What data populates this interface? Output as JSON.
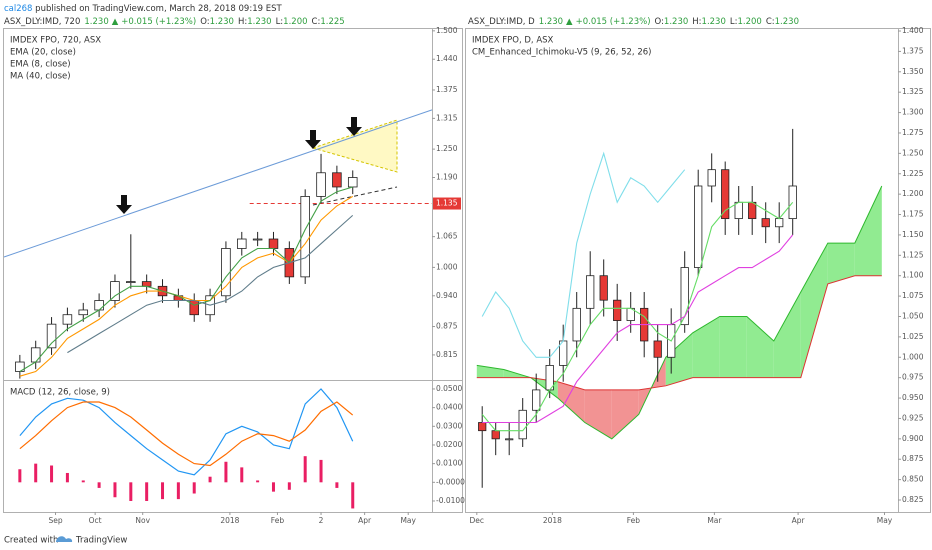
{
  "header": {
    "author": "cal268",
    "published": "published on TradingView.com, March 28, 2018 09:19 EST",
    "left": {
      "symbol": "ASX_DLY:IMD, 720",
      "price": "1.230",
      "arrow": "▲",
      "change": "+0.015 (+1.23%)",
      "stats": [
        [
          "O:",
          "1.230"
        ],
        [
          "H:",
          "1.230"
        ],
        [
          "L:",
          "1.200"
        ],
        [
          "C:",
          "1.225"
        ]
      ]
    },
    "right": {
      "symbol": "ASX_DLY:IMD, D",
      "price": "1.230",
      "arrow": "▲",
      "change": "+0.015 (+1.23%)",
      "stats": [
        [
          "O:",
          "1.230"
        ],
        [
          "H:",
          "1.230"
        ],
        [
          "L:",
          "1.200"
        ],
        [
          "C:",
          "1.230"
        ]
      ]
    }
  },
  "footer": {
    "created": "Created with",
    "brand": "TradingView"
  },
  "chart_data": [
    {
      "type": "candlestick",
      "title": "IMDEX FPO, 720, ASX",
      "up_color": "#ffffff",
      "down_color": "#e53935",
      "xlim": [
        0,
        108
      ],
      "ylim": [
        0.762,
        1.506
      ],
      "yticks": [
        {
          "value": 1.5,
          "label": "1.500"
        },
        {
          "value": 1.44,
          "label": "1.440"
        },
        1.375,
        1.315,
        {
          "value": 1.25,
          "label": "1.250"
        },
        {
          "value": 1.19,
          "label": "1.190"
        },
        1.065,
        {
          "value": 1.0,
          "label": "1.000"
        },
        {
          "value": 0.94,
          "label": "0.940"
        },
        0.875,
        0.815
      ],
      "x": [
        4,
        8,
        12,
        16,
        20,
        24,
        28,
        32,
        36,
        40,
        44,
        48,
        52,
        56,
        60,
        64,
        68,
        72,
        76,
        80,
        84,
        88
      ],
      "open": [
        0.78,
        0.8,
        0.83,
        0.88,
        0.9,
        0.91,
        0.93,
        0.97,
        0.97,
        0.96,
        0.94,
        0.93,
        0.9,
        0.94,
        1.04,
        1.06,
        1.06,
        1.04,
        0.98,
        1.15,
        1.2,
        1.17
      ],
      "high": [
        0.815,
        0.845,
        0.895,
        0.915,
        0.925,
        0.945,
        0.985,
        1.07,
        0.985,
        0.975,
        0.955,
        0.945,
        0.955,
        1.055,
        1.075,
        1.075,
        1.075,
        1.055,
        1.165,
        1.24,
        1.215,
        1.205
      ],
      "low": [
        0.765,
        0.785,
        0.815,
        0.865,
        0.885,
        0.895,
        0.915,
        0.955,
        0.945,
        0.925,
        0.915,
        0.885,
        0.885,
        0.925,
        1.025,
        1.045,
        1.025,
        0.965,
        0.965,
        1.135,
        1.155,
        1.155
      ],
      "close": [
        0.8,
        0.83,
        0.88,
        0.9,
        0.91,
        0.93,
        0.97,
        0.97,
        0.96,
        0.94,
        0.93,
        0.9,
        0.94,
        1.04,
        1.06,
        1.06,
        1.04,
        0.98,
        1.15,
        1.2,
        1.17,
        1.19
      ],
      "series": [
        {
          "name": "EMA (20, close)",
          "color": "#ff9800",
          "values": [
            0.77,
            0.78,
            0.81,
            0.85,
            0.87,
            0.89,
            0.92,
            0.94,
            0.95,
            0.95,
            0.94,
            0.93,
            0.93,
            0.96,
            1.0,
            1.02,
            1.03,
            1.01,
            1.05,
            1.1,
            1.13,
            1.15
          ]
        },
        {
          "name": "EMA (8, close)",
          "color": "#43a047",
          "values": [
            0.78,
            0.8,
            0.84,
            0.87,
            0.89,
            0.91,
            0.94,
            0.96,
            0.96,
            0.95,
            0.94,
            0.92,
            0.93,
            0.98,
            1.02,
            1.04,
            1.04,
            1.01,
            1.08,
            1.14,
            1.16,
            1.17
          ]
        },
        {
          "name": "MA (40, close)",
          "color": "#607d8b",
          "values": [
            null,
            null,
            null,
            0.82,
            0.84,
            0.86,
            0.88,
            0.9,
            0.92,
            0.93,
            0.93,
            0.93,
            0.92,
            0.93,
            0.95,
            0.98,
            1.0,
            1.01,
            1.02,
            1.05,
            1.08,
            1.11
          ]
        }
      ],
      "trendline": {
        "x": [
          0,
          108
        ],
        "y": [
          1.022,
          1.333
        ],
        "color": "#6c9bd8"
      },
      "level": {
        "value": 1.135,
        "x": 62,
        "color": "#e53935"
      }
    },
    {
      "type": "macd",
      "title": "MACD (12, 26, close, 9)",
      "xlim": [
        0,
        108
      ],
      "ylim": [
        -0.0159,
        0.0548
      ],
      "yticks": [
        {
          "value": 0.05,
          "label": "0.0500"
        },
        {
          "value": 0.04,
          "label": "0.0400"
        },
        {
          "value": 0.03,
          "label": "0.0300"
        },
        {
          "value": 0.02,
          "label": "0.0200"
        },
        {
          "value": 0.01,
          "label": "0.0100"
        },
        {
          "value": 0,
          "label": "-0.0000"
        },
        {
          "value": -0.01,
          "label": "-0.0100"
        }
      ],
      "xticks": [
        {
          "value": 13,
          "label": "Sep"
        },
        {
          "value": 23,
          "label": "Oct"
        },
        {
          "value": 35,
          "label": "Nov"
        },
        {
          "value": 57,
          "label": "2018"
        },
        {
          "value": 69,
          "label": "Feb"
        },
        {
          "value": 80,
          "label": "2"
        },
        {
          "value": 91,
          "label": "Apr"
        },
        {
          "value": 102,
          "label": "May"
        }
      ],
      "x": [
        4,
        8,
        12,
        16,
        20,
        24,
        28,
        32,
        36,
        40,
        44,
        48,
        52,
        56,
        60,
        64,
        68,
        72,
        76,
        80,
        84,
        88
      ],
      "histogram": {
        "color": "#e91e63",
        "values": [
          0.007,
          0.01,
          0.009,
          0.005,
          0.001,
          -0.003,
          -0.008,
          -0.01,
          -0.01,
          -0.009,
          -0.009,
          -0.006,
          0.003,
          0.011,
          0.008,
          0.001,
          -0.005,
          -0.004,
          0.014,
          0.012,
          -0.003,
          -0.014
        ]
      },
      "series": [
        {
          "color": "#2196f3",
          "values": [
            0.025,
            0.035,
            0.042,
            0.045,
            0.044,
            0.04,
            0.032,
            0.025,
            0.018,
            0.012,
            0.006,
            0.004,
            0.012,
            0.026,
            0.03,
            0.027,
            0.02,
            0.018,
            0.042,
            0.05,
            0.04,
            0.022
          ]
        },
        {
          "color": "#ff6d00",
          "values": [
            0.018,
            0.025,
            0.033,
            0.04,
            0.043,
            0.043,
            0.04,
            0.035,
            0.028,
            0.021,
            0.015,
            0.01,
            0.009,
            0.015,
            0.022,
            0.026,
            0.025,
            0.022,
            0.028,
            0.038,
            0.043,
            0.036
          ]
        }
      ]
    },
    {
      "type": "candlestick",
      "title": "IMDEX FPO, D, ASX",
      "indicator": "CM_Enhanced_Ichimoku-V5 (9, 26, 52, 26)",
      "up_color": "#ffffff",
      "down_color": "#e53935",
      "xlim": [
        -4,
        156
      ],
      "ylim": [
        0.8103,
        1.4037
      ],
      "yticks": [
        {
          "value": 1.4,
          "label": "1.400"
        },
        1.375,
        {
          "value": 1.35,
          "label": "1.350"
        },
        1.325,
        {
          "value": 1.3,
          "label": "1.300"
        },
        1.275,
        {
          "value": 1.25,
          "label": "1.250"
        },
        1.225,
        {
          "value": 1.2,
          "label": "1.200"
        },
        1.175,
        {
          "value": 1.15,
          "label": "1.150"
        },
        1.125,
        {
          "value": 1.1,
          "label": "1.100"
        },
        1.075,
        {
          "value": 1.05,
          "label": "1.050"
        },
        1.025,
        {
          "value": 1.0,
          "label": "1.000"
        },
        0.975,
        {
          "value": 0.95,
          "label": "0.950"
        },
        0.925,
        {
          "value": 0.9,
          "label": "0.900"
        },
        0.875,
        {
          "value": 0.85,
          "label": "0.850"
        },
        0.825
      ],
      "xticks": [
        {
          "value": 0,
          "label": "Dec"
        },
        {
          "value": 28,
          "label": "2018"
        },
        {
          "value": 58,
          "label": "Feb"
        },
        {
          "value": 88,
          "label": "Mar"
        },
        {
          "value": 119,
          "label": "Apr"
        },
        {
          "value": 151,
          "label": "May"
        }
      ],
      "x": [
        2,
        7,
        12,
        17,
        22,
        27,
        32,
        37,
        42,
        47,
        52,
        57,
        62,
        67,
        72,
        77,
        82,
        87,
        92,
        97,
        102,
        107,
        112,
        117
      ],
      "open": [
        0.92,
        0.91,
        0.9,
        0.9,
        0.935,
        0.96,
        0.99,
        1.02,
        1.06,
        1.1,
        1.07,
        1.045,
        1.06,
        1.02,
        1.0,
        1.04,
        1.11,
        1.21,
        1.23,
        1.17,
        1.19,
        1.17,
        1.16,
        1.17
      ],
      "high": [
        0.94,
        0.92,
        0.92,
        0.95,
        0.98,
        1.01,
        1.04,
        1.08,
        1.13,
        1.12,
        1.09,
        1.08,
        1.08,
        1.04,
        1.06,
        1.13,
        1.23,
        1.25,
        1.24,
        1.21,
        1.21,
        1.19,
        1.19,
        1.28
      ],
      "low": [
        0.84,
        0.88,
        0.88,
        0.89,
        0.92,
        0.95,
        0.97,
        1.0,
        1.04,
        1.05,
        1.02,
        1.03,
        1.0,
        0.97,
        0.98,
        1.03,
        1.1,
        1.19,
        1.15,
        1.15,
        1.15,
        1.14,
        1.14,
        1.15
      ],
      "close": [
        0.91,
        0.9,
        0.9,
        0.935,
        0.96,
        0.99,
        1.02,
        1.06,
        1.1,
        1.07,
        1.045,
        1.06,
        1.02,
        1.0,
        1.04,
        1.11,
        1.21,
        1.23,
        1.17,
        1.19,
        1.17,
        1.16,
        1.17,
        1.21
      ],
      "series": [
        {
          "color": "#80deea",
          "values": [
            1.05,
            1.08,
            1.06,
            1.02,
            1.0,
            1.0,
            1.02,
            1.14,
            1.2,
            1.25,
            1.19,
            1.22,
            1.21,
            1.19,
            1.21,
            1.23,
            null,
            null,
            null,
            null,
            null,
            null,
            null,
            null
          ]
        },
        {
          "color": "#66dd66",
          "values": [
            0.93,
            0.91,
            0.91,
            0.91,
            0.93,
            0.96,
            0.98,
            1.01,
            1.04,
            1.06,
            1.06,
            1.06,
            1.05,
            1.03,
            1.02,
            1.05,
            1.1,
            1.16,
            1.18,
            1.19,
            1.19,
            1.18,
            1.17,
            1.19
          ]
        },
        {
          "color": "#e040e0",
          "values": [
            0.92,
            0.92,
            0.92,
            0.92,
            0.92,
            0.93,
            0.94,
            0.97,
            0.99,
            1.01,
            1.03,
            1.04,
            1.04,
            1.04,
            1.04,
            1.05,
            1.08,
            1.09,
            1.1,
            1.11,
            1.11,
            1.12,
            1.13,
            1.15
          ]
        }
      ],
      "cloud": {
        "up_color": "#7ee87e",
        "down_color": "#f08080",
        "x": [
          0,
          10,
          20,
          30,
          40,
          50,
          60,
          70,
          80,
          90,
          100,
          110,
          120,
          130,
          140,
          150
        ],
        "span_a": [
          0.99,
          0.985,
          0.975,
          0.95,
          0.92,
          0.9,
          0.93,
          1.0,
          1.03,
          1.05,
          1.05,
          1.02,
          1.08,
          1.14,
          1.14,
          1.21
        ],
        "span_b": [
          0.975,
          0.975,
          0.975,
          0.97,
          0.96,
          0.96,
          0.96,
          0.965,
          0.975,
          0.975,
          0.975,
          0.975,
          0.975,
          1.09,
          1.1,
          1.1
        ]
      }
    }
  ]
}
